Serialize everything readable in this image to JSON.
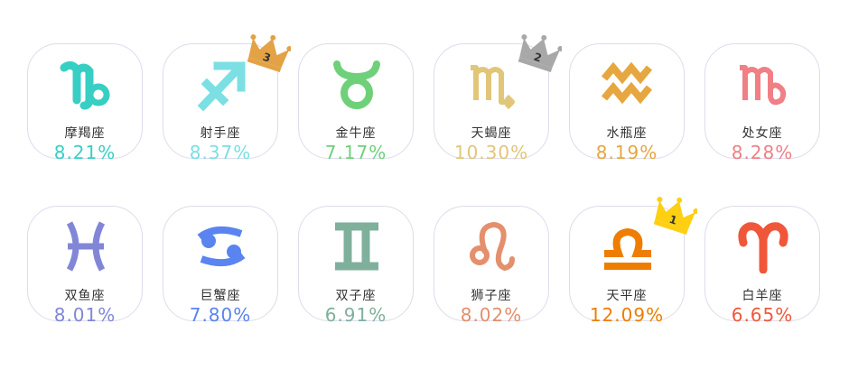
{
  "rows": [
    [
      {
        "name": "摩羯座",
        "pct": "8.21%",
        "color": "#37cfc4",
        "icon": "capricorn-icon"
      },
      {
        "name": "射手座",
        "pct": "8.37%",
        "color": "#7bdfe3",
        "icon": "sagittarius-icon",
        "rank": "3"
      },
      {
        "name": "金牛座",
        "pct": "7.17%",
        "color": "#6fd07a",
        "icon": "taurus-icon"
      },
      {
        "name": "天蝎座",
        "pct": "10.30%",
        "color": "#e1c679",
        "icon": "scorpio-icon",
        "rank": "2"
      },
      {
        "name": "水瓶座",
        "pct": "8.19%",
        "color": "#e6a640",
        "icon": "aquarius-icon"
      },
      {
        "name": "处女座",
        "pct": "8.28%",
        "color": "#f07f86",
        "icon": "virgo-icon"
      }
    ],
    [
      {
        "name": "双鱼座",
        "pct": "8.01%",
        "color": "#8187d6",
        "icon": "pisces-icon"
      },
      {
        "name": "巨蟹座",
        "pct": "7.80%",
        "color": "#5a84f0",
        "icon": "cancer-icon"
      },
      {
        "name": "双子座",
        "pct": "6.91%",
        "color": "#7fb09c",
        "icon": "gemini-icon"
      },
      {
        "name": "狮子座",
        "pct": "8.02%",
        "color": "#e48f6d",
        "icon": "leo-icon"
      },
      {
        "name": "天平座",
        "pct": "12.09%",
        "color": "#ee7d00",
        "icon": "libra-icon",
        "rank": "1"
      },
      {
        "name": "白羊座",
        "pct": "6.65%",
        "color": "#f0573a",
        "icon": "aries-icon"
      }
    ]
  ],
  "crown_colors": {
    "1": "#ffcf11",
    "2": "#a8a8a8",
    "3": "#e3a245"
  }
}
